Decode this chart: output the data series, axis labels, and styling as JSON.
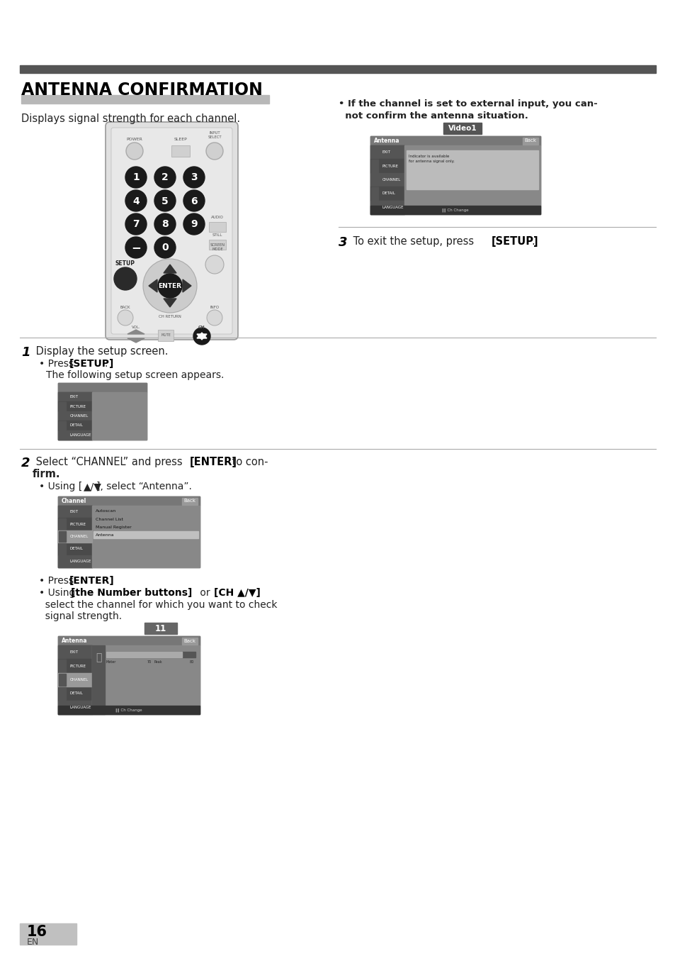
{
  "page_bg": "#ffffff",
  "title": "ANTENNA CONFIRMATION",
  "subtitle": "Displays signal strength for each channel.",
  "top_bar_color": "#555555",
  "title_bg_color": "#b8b8b8",
  "title_color": "#000000",
  "right_bullet1a": "• If the channel is set to external input, you can-",
  "right_bullet1b": "  not confirm the antenna situation.",
  "right_label": "Video1",
  "channel_label": "11",
  "page_num": "16",
  "page_en": "EN",
  "divider_color": "#aaaaaa",
  "menu_items": [
    "EXIT",
    "PICTURE",
    "CHANNEL",
    "DETAIL",
    "LANGUAGE"
  ],
  "channel_submenu": [
    "Autoscan",
    "Channel List",
    "Manual Register",
    "Antenna"
  ]
}
